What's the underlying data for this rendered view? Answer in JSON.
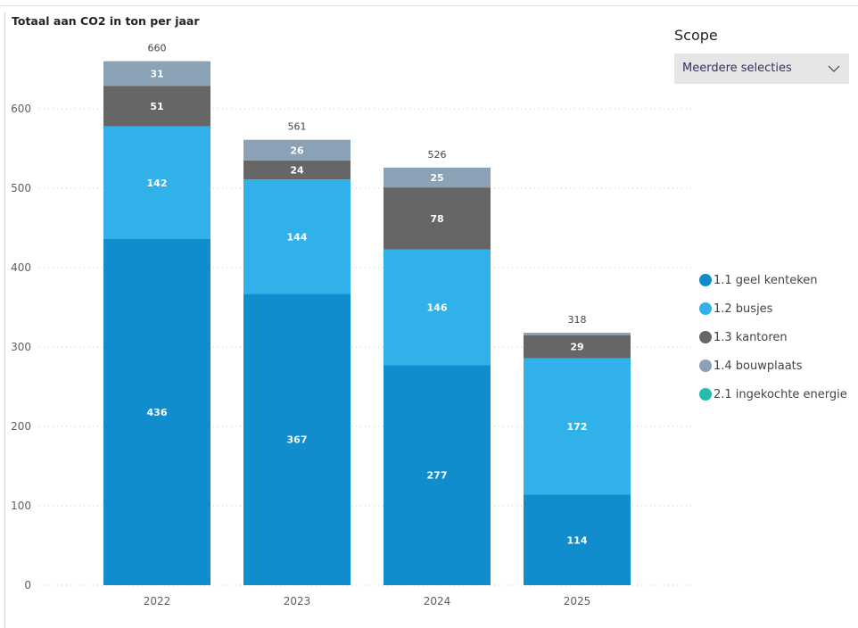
{
  "chart_data": {
    "type": "bar",
    "stacked": true,
    "title": "Totaal aan CO2 in ton per jaar",
    "xlabel": "",
    "ylabel": "",
    "categories": [
      "2022",
      "2023",
      "2024",
      "2025"
    ],
    "ylim": [
      0,
      700
    ],
    "yticks": [
      0,
      100,
      200,
      300,
      400,
      500,
      600
    ],
    "grid": true,
    "legend_position": "right",
    "totals": [
      660,
      561,
      526,
      318
    ],
    "series": [
      {
        "name": "1.1 geel kenteken",
        "color": "#118dcd",
        "values": [
          436,
          367,
          277,
          114
        ]
      },
      {
        "name": "1.2 busjes",
        "color": "#30b1ea",
        "values": [
          142,
          144,
          146,
          172
        ]
      },
      {
        "name": "1.3 kantoren",
        "color": "#666666",
        "values": [
          51,
          24,
          78,
          29
        ]
      },
      {
        "name": "1.4 bouwplaats",
        "color": "#8aa1b6",
        "values": [
          31,
          26,
          25,
          3
        ]
      },
      {
        "name": "2.1 ingekochte energie",
        "color": "#26bcad",
        "values": [
          0,
          0,
          0,
          0
        ]
      }
    ]
  },
  "slicer": {
    "title": "Scope",
    "selected": "Meerdere selecties",
    "chevron_icon": "chevron-down-icon"
  }
}
